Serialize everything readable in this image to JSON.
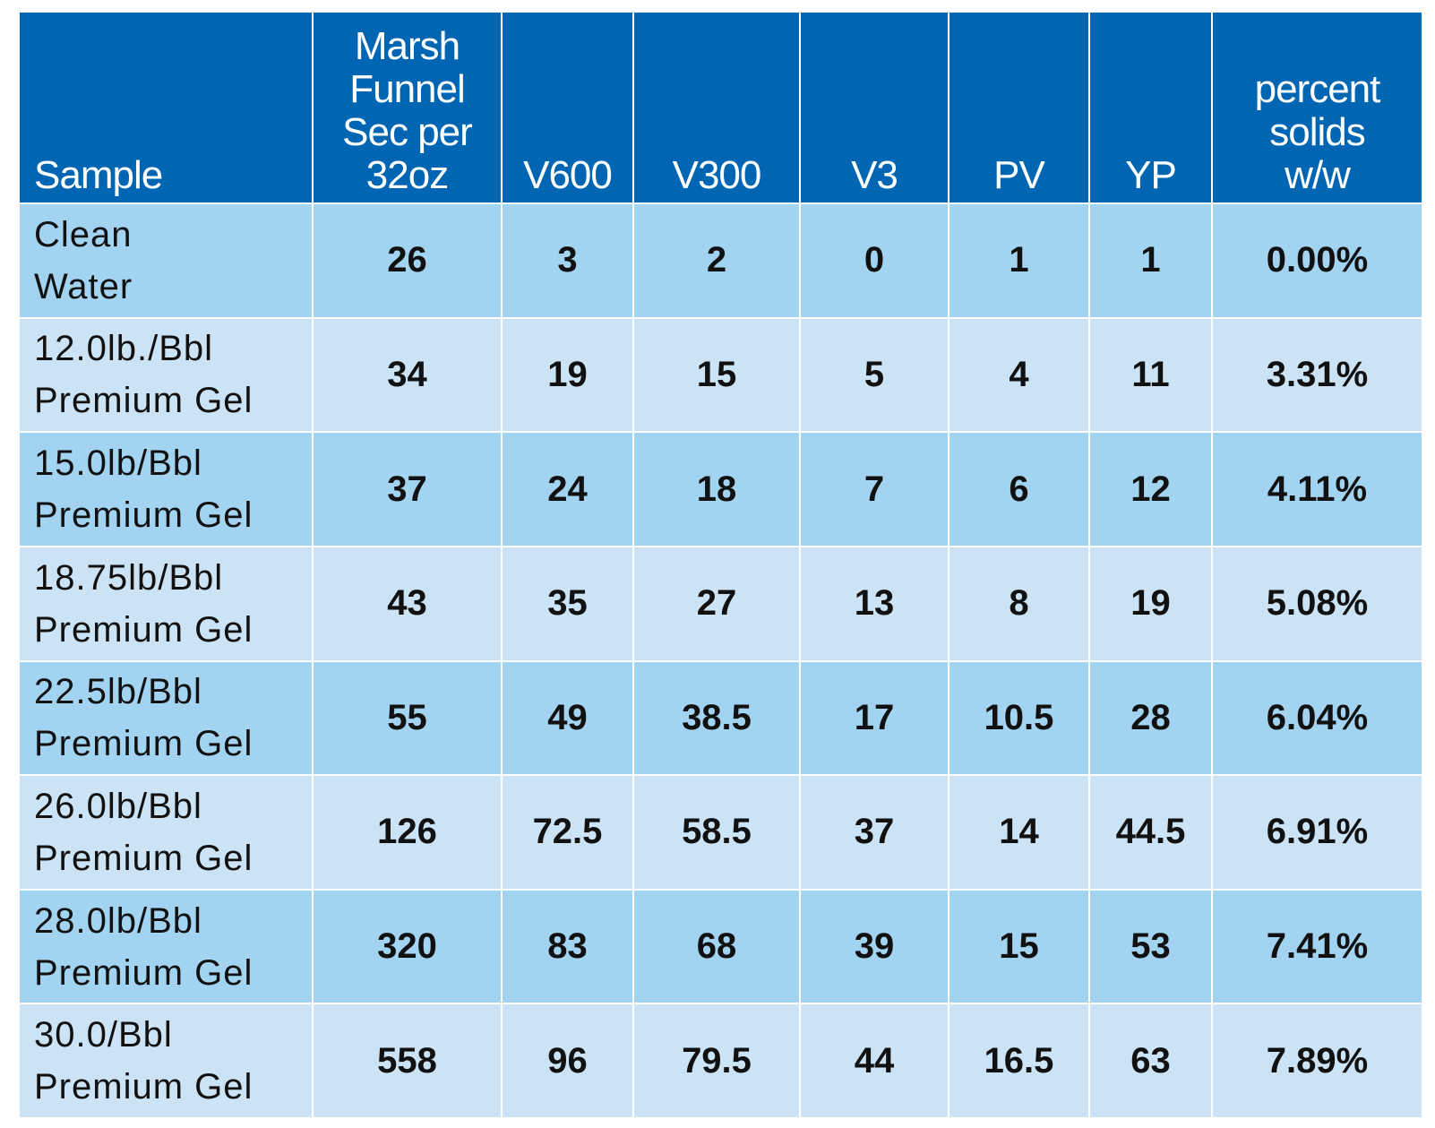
{
  "chart_data": {
    "type": "table",
    "columns": [
      [
        "Sample"
      ],
      [
        "Marsh",
        "Funnel",
        "Sec per",
        "32oz"
      ],
      [
        "V600"
      ],
      [
        "V300"
      ],
      [
        "V3"
      ],
      [
        "PV"
      ],
      [
        "YP"
      ],
      [
        "percent",
        "solids",
        "w/w"
      ]
    ],
    "rows": [
      {
        "sample": [
          "Clean",
          "Water"
        ],
        "values": [
          "26",
          "3",
          "2",
          "0",
          "1",
          "1",
          "0.00%"
        ]
      },
      {
        "sample": [
          "12.0lb./Bbl",
          "Premium Gel"
        ],
        "values": [
          "34",
          "19",
          "15",
          "5",
          "4",
          "11",
          "3.31%"
        ]
      },
      {
        "sample": [
          "15.0lb/Bbl",
          "Premium Gel"
        ],
        "values": [
          "37",
          "24",
          "18",
          "7",
          "6",
          "12",
          "4.11%"
        ]
      },
      {
        "sample": [
          "18.75lb/Bbl",
          "Premium Gel"
        ],
        "values": [
          "43",
          "35",
          "27",
          "13",
          "8",
          "19",
          "5.08%"
        ]
      },
      {
        "sample": [
          "22.5lb/Bbl",
          "Premium Gel"
        ],
        "values": [
          "55",
          "49",
          "38.5",
          "17",
          "10.5",
          "28",
          "6.04%"
        ]
      },
      {
        "sample": [
          "26.0lb/Bbl",
          "Premium Gel"
        ],
        "values": [
          "126",
          "72.5",
          "58.5",
          "37",
          "14",
          "44.5",
          "6.91%"
        ]
      },
      {
        "sample": [
          "28.0lb/Bbl",
          "Premium Gel"
        ],
        "values": [
          "320",
          "83",
          "68",
          "39",
          "15",
          "53",
          "7.41%"
        ]
      },
      {
        "sample": [
          "30.0/Bbl",
          "Premium Gel"
        ],
        "values": [
          "558",
          "96",
          "79.5",
          "44",
          "16.5",
          "63",
          "7.89%"
        ]
      }
    ],
    "colors": {
      "header_bg": "#0065b2",
      "row_dark": "#a2d3f1",
      "row_light": "#cbe3f5"
    }
  }
}
